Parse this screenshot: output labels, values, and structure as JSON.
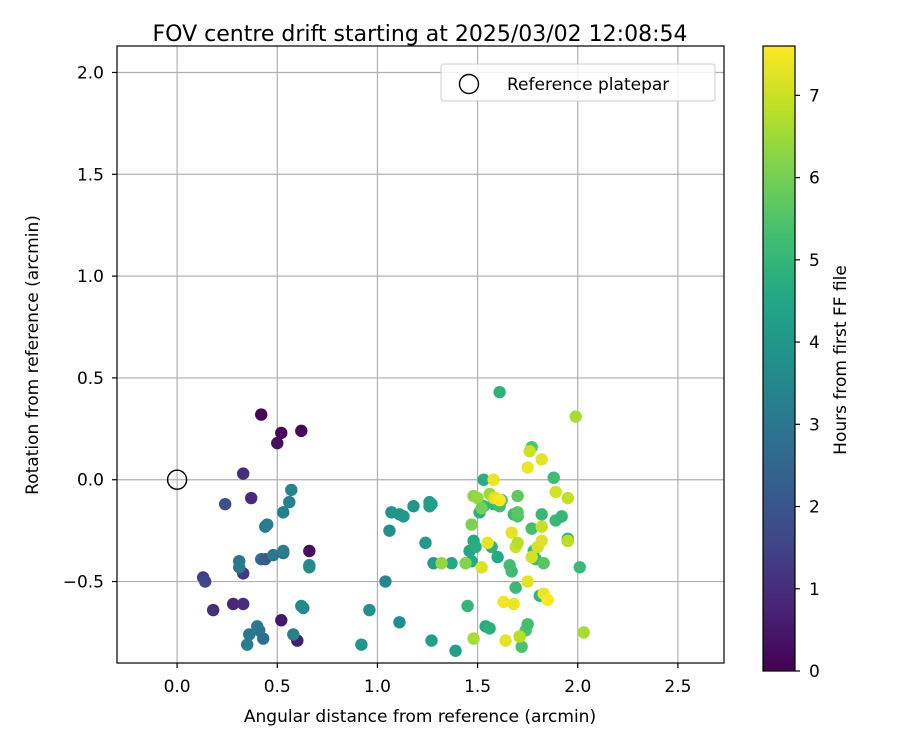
{
  "chart_data": {
    "type": "scatter",
    "title": "FOV centre drift starting at 2025/03/02 12:08:54",
    "xlabel": "Angular distance from reference (arcmin)",
    "ylabel": "Rotation from reference (arcmin)",
    "xlim": [
      -0.3,
      2.73
    ],
    "ylim": [
      -0.9,
      2.13
    ],
    "xticks": [
      0.0,
      0.5,
      1.0,
      1.5,
      2.0,
      2.5
    ],
    "xtick_labels": [
      "0.0",
      "0.5",
      "1.0",
      "1.5",
      "2.0",
      "2.5"
    ],
    "yticks": [
      -0.5,
      0.0,
      0.5,
      1.0,
      1.5,
      2.0
    ],
    "ytick_labels": [
      "−0.5",
      "0.0",
      "0.5",
      "1.0",
      "1.5",
      "2.0"
    ],
    "grid": true,
    "legend": {
      "placement": "upper right",
      "entries": [
        {
          "label": "Reference platepar",
          "marker": "open-circle"
        }
      ]
    },
    "reference_point": {
      "x": 0.0,
      "y": 0.0
    },
    "colorbar": {
      "label": "Hours from first FF file",
      "colormap": "viridis",
      "range": [
        0,
        7.6
      ],
      "ticks": [
        0,
        1,
        2,
        3,
        4,
        5,
        6,
        7
      ],
      "tick_labels": [
        "0",
        "1",
        "2",
        "3",
        "4",
        "5",
        "6",
        "7"
      ]
    },
    "points": [
      {
        "x": 0.42,
        "y": 0.32,
        "c": 0.1
      },
      {
        "x": 0.52,
        "y": 0.23,
        "c": 0.2
      },
      {
        "x": 0.62,
        "y": 0.24,
        "c": 0.15
      },
      {
        "x": 0.5,
        "y": 0.18,
        "c": 0.3
      },
      {
        "x": 0.66,
        "y": -0.35,
        "c": 0.3
      },
      {
        "x": 0.52,
        "y": -0.69,
        "c": 0.5
      },
      {
        "x": 0.6,
        "y": -0.79,
        "c": 0.6
      },
      {
        "x": 0.33,
        "y": 0.03,
        "c": 1.0
      },
      {
        "x": 0.37,
        "y": -0.09,
        "c": 0.9
      },
      {
        "x": 0.24,
        "y": -0.12,
        "c": 1.8
      },
      {
        "x": 0.13,
        "y": -0.48,
        "c": 1.4
      },
      {
        "x": 0.14,
        "y": -0.5,
        "c": 1.6
      },
      {
        "x": 0.18,
        "y": -0.64,
        "c": 1.0
      },
      {
        "x": 0.28,
        "y": -0.61,
        "c": 0.8
      },
      {
        "x": 0.33,
        "y": -0.61,
        "c": 1.0
      },
      {
        "x": 0.33,
        "y": -0.46,
        "c": 1.3
      },
      {
        "x": 0.31,
        "y": -0.4,
        "c": 3.0
      },
      {
        "x": 0.31,
        "y": -0.43,
        "c": 3.1
      },
      {
        "x": 0.35,
        "y": -0.81,
        "c": 3.2
      },
      {
        "x": 0.36,
        "y": -0.76,
        "c": 3.0
      },
      {
        "x": 0.4,
        "y": -0.72,
        "c": 3.1
      },
      {
        "x": 0.41,
        "y": -0.74,
        "c": 3.0
      },
      {
        "x": 0.43,
        "y": -0.78,
        "c": 2.8
      },
      {
        "x": 0.42,
        "y": -0.39,
        "c": 2.8
      },
      {
        "x": 0.44,
        "y": -0.39,
        "c": 2.2
      },
      {
        "x": 0.44,
        "y": -0.23,
        "c": 3.1
      },
      {
        "x": 0.45,
        "y": -0.22,
        "c": 3.2
      },
      {
        "x": 0.48,
        "y": -0.37,
        "c": 3.0
      },
      {
        "x": 0.53,
        "y": -0.36,
        "c": 2.8
      },
      {
        "x": 0.53,
        "y": -0.35,
        "c": 3.2
      },
      {
        "x": 0.53,
        "y": -0.16,
        "c": 3.3
      },
      {
        "x": 0.56,
        "y": -0.11,
        "c": 3.3
      },
      {
        "x": 0.57,
        "y": -0.05,
        "c": 3.4
      },
      {
        "x": 0.58,
        "y": -0.76,
        "c": 3.3
      },
      {
        "x": 0.62,
        "y": -0.62,
        "c": 3.5
      },
      {
        "x": 0.63,
        "y": -0.63,
        "c": 3.6
      },
      {
        "x": 0.66,
        "y": -0.42,
        "c": 3.7
      },
      {
        "x": 0.66,
        "y": -0.43,
        "c": 3.6
      },
      {
        "x": 0.92,
        "y": -0.81,
        "c": 3.9
      },
      {
        "x": 0.96,
        "y": -0.64,
        "c": 3.8
      },
      {
        "x": 1.04,
        "y": -0.5,
        "c": 3.5
      },
      {
        "x": 1.06,
        "y": -0.25,
        "c": 3.8
      },
      {
        "x": 1.07,
        "y": -0.16,
        "c": 3.9
      },
      {
        "x": 1.11,
        "y": -0.7,
        "c": 3.7
      },
      {
        "x": 1.11,
        "y": -0.17,
        "c": 3.9
      },
      {
        "x": 1.13,
        "y": -0.18,
        "c": 4.0
      },
      {
        "x": 1.18,
        "y": -0.13,
        "c": 4.0
      },
      {
        "x": 1.24,
        "y": -0.31,
        "c": 4.1
      },
      {
        "x": 1.26,
        "y": -0.13,
        "c": 4.2
      },
      {
        "x": 1.26,
        "y": -0.11,
        "c": 4.3
      },
      {
        "x": 1.27,
        "y": -0.12,
        "c": 4.3
      },
      {
        "x": 1.28,
        "y": -0.41,
        "c": 4.2
      },
      {
        "x": 1.27,
        "y": -0.79,
        "c": 4.3
      },
      {
        "x": 1.39,
        "y": -0.84,
        "c": 4.3
      },
      {
        "x": 1.37,
        "y": -0.41,
        "c": 4.6
      },
      {
        "x": 1.45,
        "y": -0.62,
        "c": 5.0
      },
      {
        "x": 1.46,
        "y": -0.35,
        "c": 4.5
      },
      {
        "x": 1.47,
        "y": -0.4,
        "c": 4.6
      },
      {
        "x": 1.48,
        "y": -0.3,
        "c": 4.6
      },
      {
        "x": 1.49,
        "y": -0.33,
        "c": 4.7
      },
      {
        "x": 1.51,
        "y": -0.16,
        "c": 4.8
      },
      {
        "x": 1.53,
        "y": -0.13,
        "c": 5.0
      },
      {
        "x": 1.53,
        "y": 0.0,
        "c": 4.7
      },
      {
        "x": 1.54,
        "y": -0.72,
        "c": 4.6
      },
      {
        "x": 1.56,
        "y": -0.73,
        "c": 4.8
      },
      {
        "x": 1.57,
        "y": -0.33,
        "c": 4.9
      },
      {
        "x": 1.58,
        "y": -0.12,
        "c": 5.0
      },
      {
        "x": 1.6,
        "y": -0.38,
        "c": 4.6
      },
      {
        "x": 1.61,
        "y": 0.43,
        "c": 4.9
      },
      {
        "x": 1.61,
        "y": -0.13,
        "c": 5.2
      },
      {
        "x": 1.62,
        "y": -0.1,
        "c": 5.4
      },
      {
        "x": 1.66,
        "y": -0.42,
        "c": 5.3
      },
      {
        "x": 1.67,
        "y": -0.45,
        "c": 5.2
      },
      {
        "x": 1.68,
        "y": -0.17,
        "c": 5.1
      },
      {
        "x": 1.69,
        "y": -0.53,
        "c": 5.1
      },
      {
        "x": 1.7,
        "y": -0.18,
        "c": 5.5
      },
      {
        "x": 1.7,
        "y": -0.16,
        "c": 5.6
      },
      {
        "x": 1.7,
        "y": -0.08,
        "c": 5.7
      },
      {
        "x": 1.72,
        "y": -0.82,
        "c": 5.4
      },
      {
        "x": 1.71,
        "y": -0.77,
        "c": 5.6
      },
      {
        "x": 1.74,
        "y": -0.74,
        "c": 5.4
      },
      {
        "x": 1.75,
        "y": -0.71,
        "c": 5.3
      },
      {
        "x": 1.77,
        "y": 0.16,
        "c": 5.5
      },
      {
        "x": 1.77,
        "y": -0.24,
        "c": 5.3
      },
      {
        "x": 1.78,
        "y": -0.35,
        "c": 5.2
      },
      {
        "x": 1.79,
        "y": -0.39,
        "c": 5.1
      },
      {
        "x": 1.81,
        "y": -0.57,
        "c": 5.0
      },
      {
        "x": 1.82,
        "y": -0.17,
        "c": 5.1
      },
      {
        "x": 1.83,
        "y": -0.41,
        "c": 5.6
      },
      {
        "x": 1.88,
        "y": 0.01,
        "c": 5.2
      },
      {
        "x": 1.89,
        "y": -0.2,
        "c": 5.1
      },
      {
        "x": 1.92,
        "y": -0.18,
        "c": 5.0
      },
      {
        "x": 1.95,
        "y": -0.29,
        "c": 4.9
      },
      {
        "x": 1.95,
        "y": -0.3,
        "c": 5.0
      },
      {
        "x": 2.01,
        "y": -0.43,
        "c": 5.1
      },
      {
        "x": 1.32,
        "y": -0.41,
        "c": 6.4
      },
      {
        "x": 1.44,
        "y": -0.41,
        "c": 6.2
      },
      {
        "x": 1.47,
        "y": -0.22,
        "c": 6.1
      },
      {
        "x": 1.48,
        "y": -0.08,
        "c": 6.3
      },
      {
        "x": 1.48,
        "y": -0.78,
        "c": 6.6
      },
      {
        "x": 1.5,
        "y": -0.09,
        "c": 6.4
      },
      {
        "x": 1.52,
        "y": -0.14,
        "c": 6.0
      },
      {
        "x": 1.52,
        "y": -0.43,
        "c": 7.2
      },
      {
        "x": 1.55,
        "y": -0.31,
        "c": 7.3
      },
      {
        "x": 1.56,
        "y": -0.07,
        "c": 6.5
      },
      {
        "x": 1.58,
        "y": -0.09,
        "c": 7.0
      },
      {
        "x": 1.58,
        "y": 0.0,
        "c": 7.4
      },
      {
        "x": 1.59,
        "y": -0.09,
        "c": 7.3
      },
      {
        "x": 1.61,
        "y": -0.1,
        "c": 7.6
      },
      {
        "x": 1.63,
        "y": -0.6,
        "c": 7.5
      },
      {
        "x": 1.64,
        "y": -0.79,
        "c": 7.3
      },
      {
        "x": 1.67,
        "y": -0.26,
        "c": 7.3
      },
      {
        "x": 1.68,
        "y": -0.61,
        "c": 7.4
      },
      {
        "x": 1.69,
        "y": -0.33,
        "c": 7.0
      },
      {
        "x": 1.7,
        "y": -0.31,
        "c": 6.8
      },
      {
        "x": 1.71,
        "y": -0.77,
        "c": 6.8
      },
      {
        "x": 1.75,
        "y": 0.06,
        "c": 7.4
      },
      {
        "x": 1.76,
        "y": 0.14,
        "c": 7.0
      },
      {
        "x": 1.75,
        "y": -0.5,
        "c": 7.3
      },
      {
        "x": 1.77,
        "y": -0.38,
        "c": 7.1
      },
      {
        "x": 1.8,
        "y": -0.33,
        "c": 7.1
      },
      {
        "x": 1.82,
        "y": 0.1,
        "c": 7.3
      },
      {
        "x": 1.82,
        "y": -0.23,
        "c": 6.9
      },
      {
        "x": 1.82,
        "y": -0.3,
        "c": 7.2
      },
      {
        "x": 1.83,
        "y": -0.56,
        "c": 7.4
      },
      {
        "x": 1.85,
        "y": -0.59,
        "c": 7.6
      },
      {
        "x": 1.89,
        "y": -0.06,
        "c": 7.1
      },
      {
        "x": 1.95,
        "y": -0.09,
        "c": 6.9
      },
      {
        "x": 1.95,
        "y": -0.3,
        "c": 6.8
      },
      {
        "x": 1.99,
        "y": 0.31,
        "c": 6.6
      },
      {
        "x": 2.03,
        "y": -0.75,
        "c": 6.6
      }
    ]
  }
}
